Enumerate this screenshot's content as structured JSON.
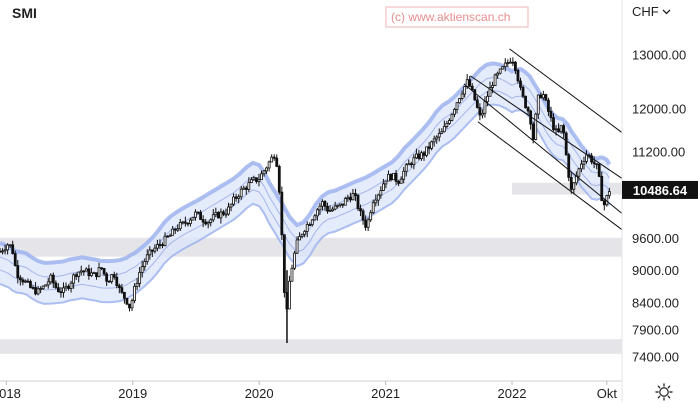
{
  "chart_data": {
    "type": "candlestick",
    "title": "SMI",
    "currency": "CHF",
    "watermark": "(c) www.aktienscan.ch",
    "last_value_label": "10486.64",
    "y_ticks": [
      "13000.00",
      "12000.00",
      "11200.00",
      "9600.00",
      "9000.00",
      "8400.00",
      "7900.00",
      "7400.00"
    ],
    "y_tick_values": [
      13000,
      12000,
      11200,
      9600,
      9000,
      8400,
      7900,
      7400
    ],
    "x_ticks": [
      "2018",
      "2019",
      "2020",
      "2021",
      "2022",
      "Okt"
    ],
    "x_tick_dates": [
      2018.0,
      2019.0,
      2020.0,
      2021.0,
      2022.0,
      2022.75
    ],
    "ylim": [
      7150,
      13450
    ],
    "xlim": [
      2017.95,
      2022.87
    ],
    "colors": {
      "candle": "#111111",
      "band_fill": "#dbe4fa",
      "band_edge": "#9fb4ee",
      "band_mid": "#8aa0e6",
      "zone": "#e5e5e9",
      "last_label_bg": "#111111"
    },
    "support_zones": [
      {
        "low": 10400,
        "high": 10620,
        "from": 2022.0,
        "to": 2022.87
      },
      {
        "low": 9250,
        "high": 9600,
        "from": 2017.95,
        "to": 2022.87
      },
      {
        "low": 7450,
        "high": 7720,
        "from": 2017.95,
        "to": 2022.87
      }
    ],
    "trend_channel": [
      {
        "from": [
          2021.62,
          12450
        ],
        "to": [
          2022.87,
          10050
        ]
      },
      {
        "from": [
          2021.67,
          12600
        ],
        "to": [
          2022.87,
          10700
        ]
      },
      {
        "from": [
          2021.98,
          13100
        ],
        "to": [
          2022.87,
          11550
        ]
      },
      {
        "from": [
          2021.73,
          11750
        ],
        "to": [
          2022.87,
          9750
        ]
      }
    ],
    "series": [
      {
        "date": 2017.95,
        "value": 9350
      },
      {
        "date": 2018.02,
        "value": 9500
      },
      {
        "date": 2018.05,
        "value": 9350
      },
      {
        "date": 2018.08,
        "value": 8950
      },
      {
        "date": 2018.12,
        "value": 8850
      },
      {
        "date": 2018.16,
        "value": 8750
      },
      {
        "date": 2018.2,
        "value": 8650
      },
      {
        "date": 2018.25,
        "value": 8600
      },
      {
        "date": 2018.3,
        "value": 8700
      },
      {
        "date": 2018.35,
        "value": 8850
      },
      {
        "date": 2018.4,
        "value": 8650
      },
      {
        "date": 2018.45,
        "value": 8600
      },
      {
        "date": 2018.5,
        "value": 8750
      },
      {
        "date": 2018.55,
        "value": 8950
      },
      {
        "date": 2018.6,
        "value": 9000
      },
      {
        "date": 2018.65,
        "value": 8950
      },
      {
        "date": 2018.7,
        "value": 8900
      },
      {
        "date": 2018.75,
        "value": 9050
      },
      {
        "date": 2018.8,
        "value": 8800
      },
      {
        "date": 2018.85,
        "value": 8950
      },
      {
        "date": 2018.9,
        "value": 8600
      },
      {
        "date": 2018.95,
        "value": 8450
      },
      {
        "date": 2018.98,
        "value": 8300
      },
      {
        "date": 2019.02,
        "value": 8700
      },
      {
        "date": 2019.06,
        "value": 9000
      },
      {
        "date": 2019.1,
        "value": 9200
      },
      {
        "date": 2019.15,
        "value": 9350
      },
      {
        "date": 2019.2,
        "value": 9450
      },
      {
        "date": 2019.25,
        "value": 9550
      },
      {
        "date": 2019.3,
        "value": 9650
      },
      {
        "date": 2019.35,
        "value": 9800
      },
      {
        "date": 2019.4,
        "value": 9850
      },
      {
        "date": 2019.45,
        "value": 9950
      },
      {
        "date": 2019.5,
        "value": 10050
      },
      {
        "date": 2019.55,
        "value": 9950
      },
      {
        "date": 2019.6,
        "value": 9900
      },
      {
        "date": 2019.65,
        "value": 10000
      },
      {
        "date": 2019.7,
        "value": 10050
      },
      {
        "date": 2019.75,
        "value": 10100
      },
      {
        "date": 2019.8,
        "value": 10300
      },
      {
        "date": 2019.85,
        "value": 10450
      },
      {
        "date": 2019.9,
        "value": 10550
      },
      {
        "date": 2019.95,
        "value": 10650
      },
      {
        "date": 2020.0,
        "value": 10700
      },
      {
        "date": 2020.04,
        "value": 10850
      },
      {
        "date": 2020.08,
        "value": 11000
      },
      {
        "date": 2020.12,
        "value": 11150
      },
      {
        "date": 2020.15,
        "value": 10900
      },
      {
        "date": 2020.18,
        "value": 9600
      },
      {
        "date": 2020.2,
        "value": 8600
      },
      {
        "date": 2020.22,
        "value": 8200
      },
      {
        "date": 2020.24,
        "value": 8800
      },
      {
        "date": 2020.27,
        "value": 9200
      },
      {
        "date": 2020.3,
        "value": 9500
      },
      {
        "date": 2020.35,
        "value": 9750
      },
      {
        "date": 2020.4,
        "value": 9900
      },
      {
        "date": 2020.45,
        "value": 10100
      },
      {
        "date": 2020.5,
        "value": 10250
      },
      {
        "date": 2020.55,
        "value": 10100
      },
      {
        "date": 2020.6,
        "value": 10150
      },
      {
        "date": 2020.65,
        "value": 10200
      },
      {
        "date": 2020.7,
        "value": 10350
      },
      {
        "date": 2020.75,
        "value": 10400
      },
      {
        "date": 2020.8,
        "value": 10050
      },
      {
        "date": 2020.85,
        "value": 9800
      },
      {
        "date": 2020.9,
        "value": 10300
      },
      {
        "date": 2020.95,
        "value": 10450
      },
      {
        "date": 2021.0,
        "value": 10700
      },
      {
        "date": 2021.05,
        "value": 10750
      },
      {
        "date": 2021.1,
        "value": 10650
      },
      {
        "date": 2021.15,
        "value": 10850
      },
      {
        "date": 2021.2,
        "value": 11000
      },
      {
        "date": 2021.25,
        "value": 11100
      },
      {
        "date": 2021.3,
        "value": 11150
      },
      {
        "date": 2021.35,
        "value": 11300
      },
      {
        "date": 2021.4,
        "value": 11450
      },
      {
        "date": 2021.45,
        "value": 11550
      },
      {
        "date": 2021.5,
        "value": 11800
      },
      {
        "date": 2021.55,
        "value": 12050
      },
      {
        "date": 2021.6,
        "value": 12300
      },
      {
        "date": 2021.65,
        "value": 12500
      },
      {
        "date": 2021.7,
        "value": 12200
      },
      {
        "date": 2021.75,
        "value": 11800
      },
      {
        "date": 2021.8,
        "value": 12200
      },
      {
        "date": 2021.85,
        "value": 12500
      },
      {
        "date": 2021.9,
        "value": 12650
      },
      {
        "date": 2021.95,
        "value": 12800
      },
      {
        "date": 2022.0,
        "value": 12950
      },
      {
        "date": 2022.03,
        "value": 12750
      },
      {
        "date": 2022.07,
        "value": 12300
      },
      {
        "date": 2022.1,
        "value": 12100
      },
      {
        "date": 2022.14,
        "value": 11900
      },
      {
        "date": 2022.17,
        "value": 11400
      },
      {
        "date": 2022.2,
        "value": 12150
      },
      {
        "date": 2022.24,
        "value": 12300
      },
      {
        "date": 2022.28,
        "value": 12000
      },
      {
        "date": 2022.32,
        "value": 11700
      },
      {
        "date": 2022.36,
        "value": 11500
      },
      {
        "date": 2022.4,
        "value": 11700
      },
      {
        "date": 2022.44,
        "value": 10900
      },
      {
        "date": 2022.47,
        "value": 10450
      },
      {
        "date": 2022.51,
        "value": 10750
      },
      {
        "date": 2022.55,
        "value": 11000
      },
      {
        "date": 2022.59,
        "value": 11150
      },
      {
        "date": 2022.63,
        "value": 11050
      },
      {
        "date": 2022.67,
        "value": 10900
      },
      {
        "date": 2022.7,
        "value": 10550
      },
      {
        "date": 2022.72,
        "value": 10150
      },
      {
        "date": 2022.75,
        "value": 10350
      },
      {
        "date": 2022.77,
        "value": 10486
      }
    ]
  }
}
